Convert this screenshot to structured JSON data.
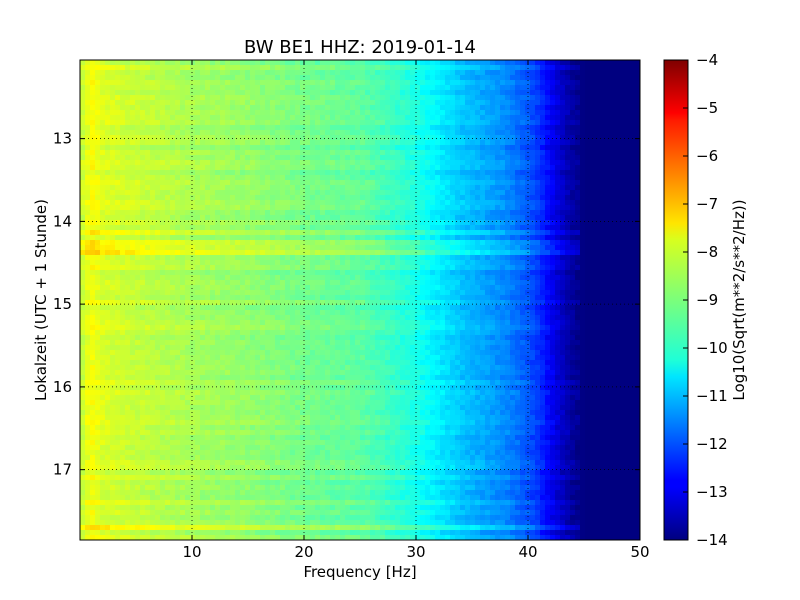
{
  "chart_data": {
    "type": "heatmap",
    "title": "BW BE1 HHZ: 2019-01-14",
    "xlabel": "Frequency [Hz]",
    "ylabel": "Lokalzeit (UTC + 1 Stunde)",
    "xlim": [
      0,
      50
    ],
    "ylim": [
      12.05,
      17.85
    ],
    "x_ticks": [
      10,
      20,
      30,
      40,
      50
    ],
    "y_ticks": [
      13,
      14,
      15,
      16,
      17
    ],
    "grid": true,
    "colormap": "jet",
    "colorbar": {
      "label": "Log10(Sqrt(m**2/s**2/Hz))",
      "vmin": -14,
      "vmax": -4,
      "ticks": [
        -14,
        -13,
        -12,
        -11,
        -10,
        -9,
        -8,
        -7,
        -6,
        -5,
        -4
      ]
    },
    "spectrum_profile": {
      "frequency_hz": [
        0,
        1,
        2,
        5,
        10,
        15,
        20,
        25,
        28,
        30,
        32,
        34,
        36,
        38,
        40,
        41,
        42,
        43,
        44,
        45,
        50
      ],
      "log10_value": [
        -8.4,
        -7.8,
        -8.1,
        -8.3,
        -8.6,
        -8.8,
        -9.1,
        -9.3,
        -9.7,
        -10.0,
        -10.4,
        -10.8,
        -11.1,
        -11.4,
        -11.9,
        -12.3,
        -12.8,
        -13.3,
        -13.7,
        -14.0,
        -14.0
      ]
    },
    "bright_bands_local_time": [
      14.15,
      14.25,
      14.35,
      17.72
    ]
  }
}
